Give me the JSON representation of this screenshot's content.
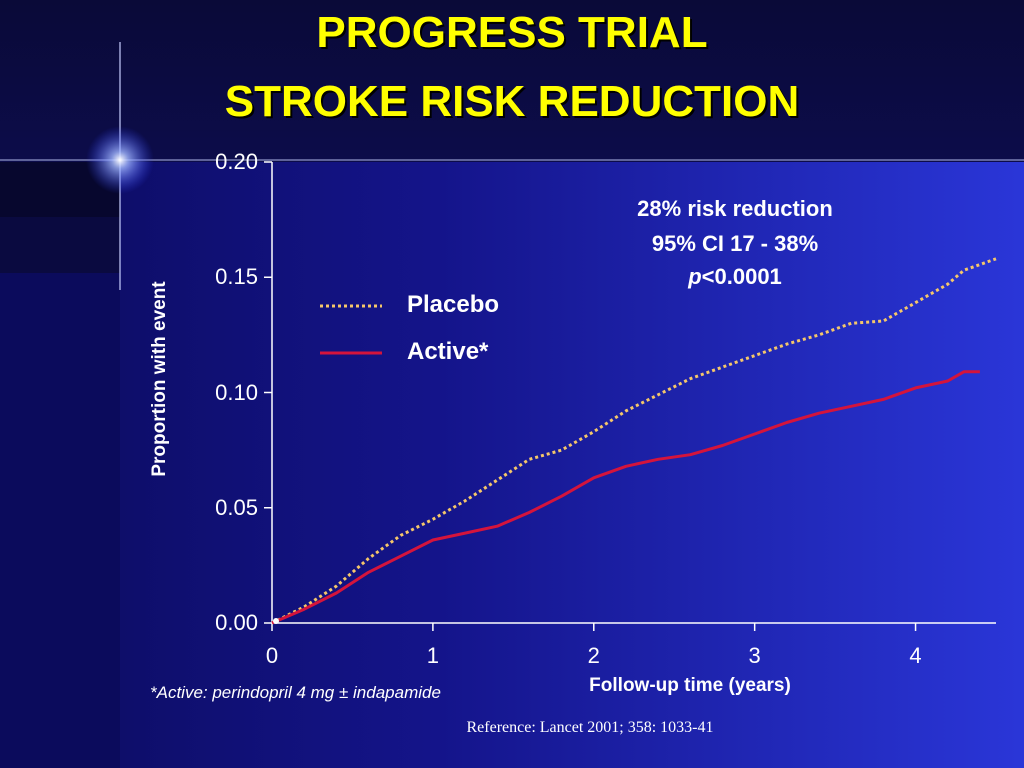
{
  "slide": {
    "title_line1": "PROGRESS TRIAL",
    "title_line2": "STROKE RISK REDUCTION",
    "footnote": "*Active: perindopril 4 mg ± indapamide",
    "reference": "Reference: Lancet 2001; 358: 1033-41"
  },
  "colors": {
    "background": "#0b0b5c",
    "title": "#ffff00",
    "placebo": "#f5c76a",
    "active": "#d4143c",
    "axis": "#ffffff"
  },
  "annotation": {
    "line1": "28% risk reduction",
    "line2": "95% CI 17 - 38%",
    "line3_italic": "p",
    "line3_rest": "<0.0001"
  },
  "chart_data": {
    "type": "line",
    "xlabel": "Follow-up time (years)",
    "ylabel": "Proportion with event",
    "xlim": [
      0,
      4.5
    ],
    "ylim": [
      0,
      0.2
    ],
    "x_ticks": [
      "0",
      "1",
      "2",
      "3",
      "4"
    ],
    "y_ticks": [
      "0.00",
      "0.05",
      "0.10",
      "0.15",
      "0.20"
    ],
    "legend_position": "top-left",
    "series": [
      {
        "name": "Placebo",
        "style": "dotted",
        "color": "#f5c76a",
        "x": [
          0,
          0.2,
          0.4,
          0.6,
          0.8,
          1.0,
          1.2,
          1.4,
          1.6,
          1.8,
          2.0,
          2.2,
          2.4,
          2.6,
          2.8,
          3.0,
          3.2,
          3.4,
          3.6,
          3.8,
          4.0,
          4.2,
          4.3,
          4.5
        ],
        "y": [
          0.0,
          0.007,
          0.016,
          0.028,
          0.038,
          0.045,
          0.053,
          0.062,
          0.071,
          0.075,
          0.083,
          0.092,
          0.099,
          0.106,
          0.111,
          0.116,
          0.121,
          0.125,
          0.13,
          0.131,
          0.139,
          0.147,
          0.153,
          0.158
        ]
      },
      {
        "name": "Active*",
        "style": "solid",
        "color": "#d4143c",
        "x": [
          0,
          0.2,
          0.4,
          0.6,
          0.8,
          1.0,
          1.2,
          1.4,
          1.6,
          1.8,
          2.0,
          2.2,
          2.4,
          2.6,
          2.8,
          3.0,
          3.2,
          3.4,
          3.6,
          3.8,
          4.0,
          4.2,
          4.3,
          4.4
        ],
        "y": [
          0.0,
          0.006,
          0.013,
          0.022,
          0.029,
          0.036,
          0.039,
          0.042,
          0.048,
          0.055,
          0.063,
          0.068,
          0.071,
          0.073,
          0.077,
          0.082,
          0.087,
          0.091,
          0.094,
          0.097,
          0.102,
          0.105,
          0.109,
          0.109
        ]
      }
    ]
  }
}
